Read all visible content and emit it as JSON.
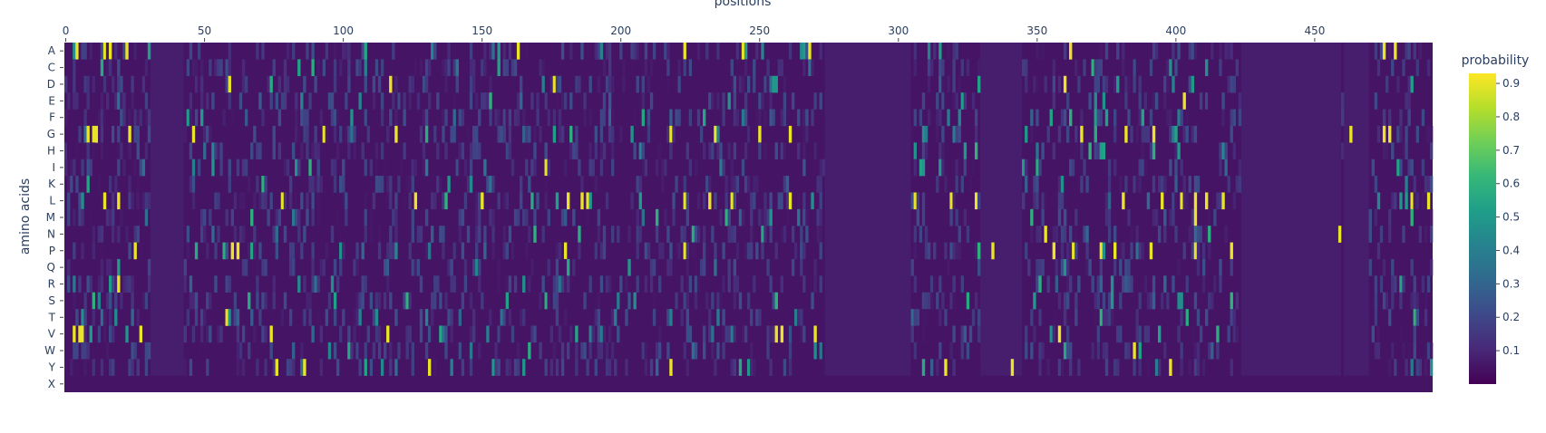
{
  "chart_data": {
    "type": "heatmap",
    "title": "",
    "xlabel": "positions",
    "ylabel": "amino acids",
    "x_range": [
      0,
      492
    ],
    "x_ticks": [
      0,
      50,
      100,
      150,
      200,
      250,
      300,
      350,
      400,
      450
    ],
    "rows": [
      "A",
      "C",
      "D",
      "E",
      "F",
      "G",
      "H",
      "I",
      "K",
      "L",
      "M",
      "N",
      "P",
      "Q",
      "R",
      "S",
      "T",
      "V",
      "W",
      "Y",
      "X"
    ],
    "colorbar": {
      "title": "probability",
      "ticks": [
        0.1,
        0.2,
        0.3,
        0.4,
        0.5,
        0.6,
        0.7,
        0.8,
        0.9
      ],
      "range": [
        0,
        0.93
      ],
      "colorscale": [
        "#440154",
        "#482878",
        "#3e4989",
        "#31688e",
        "#26828e",
        "#1f9e89",
        "#35b779",
        "#6ece58",
        "#b5de2b",
        "#fde725"
      ]
    },
    "uniform_background_value": 0.05,
    "low_information_regions": [
      [
        31,
        42
      ],
      [
        274,
        304
      ],
      [
        330,
        344
      ],
      [
        424,
        459
      ],
      [
        461,
        469
      ]
    ],
    "peaks": [
      {
        "aa": "A",
        "pos": [
          4,
          14,
          16,
          22,
          163,
          223,
          244,
          268,
          362,
          475,
          479
        ],
        "value": 0.9
      },
      {
        "aa": "D",
        "pos": [
          59,
          117,
          176,
          360
        ],
        "value": 0.9
      },
      {
        "aa": "E",
        "pos": [
          403
        ],
        "value": 0.9
      },
      {
        "aa": "G",
        "pos": [
          8,
          10,
          11,
          23,
          46,
          93,
          119,
          218,
          234,
          250,
          261,
          366,
          382,
          392,
          463,
          475,
          477
        ],
        "value": 0.9
      },
      {
        "aa": "I",
        "pos": [
          173
        ],
        "value": 0.9
      },
      {
        "aa": "L",
        "pos": [
          14,
          19,
          78,
          126,
          150,
          181,
          186,
          188,
          223,
          232,
          240,
          261,
          306,
          319,
          328,
          381,
          395,
          402,
          407,
          411,
          417,
          485,
          491
        ],
        "value": 0.9
      },
      {
        "aa": "M",
        "pos": [
          407
        ],
        "value": 0.9
      },
      {
        "aa": "N",
        "pos": [
          353,
          459
        ],
        "value": 0.9
      },
      {
        "aa": "P",
        "pos": [
          25,
          60,
          62,
          180,
          223,
          334,
          356,
          363,
          373,
          378,
          391,
          407,
          420
        ],
        "value": 0.9
      },
      {
        "aa": "R",
        "pos": [
          19
        ],
        "value": 0.9
      },
      {
        "aa": "T",
        "pos": [
          58
        ],
        "value": 0.9
      },
      {
        "aa": "V",
        "pos": [
          3,
          5,
          6,
          27,
          74,
          116,
          256,
          258,
          270,
          358
        ],
        "value": 0.9
      },
      {
        "aa": "W",
        "pos": [
          385
        ],
        "value": 0.9
      },
      {
        "aa": "Y",
        "pos": [
          76,
          86,
          131,
          218,
          317,
          341,
          398
        ],
        "value": 0.9
      }
    ]
  }
}
